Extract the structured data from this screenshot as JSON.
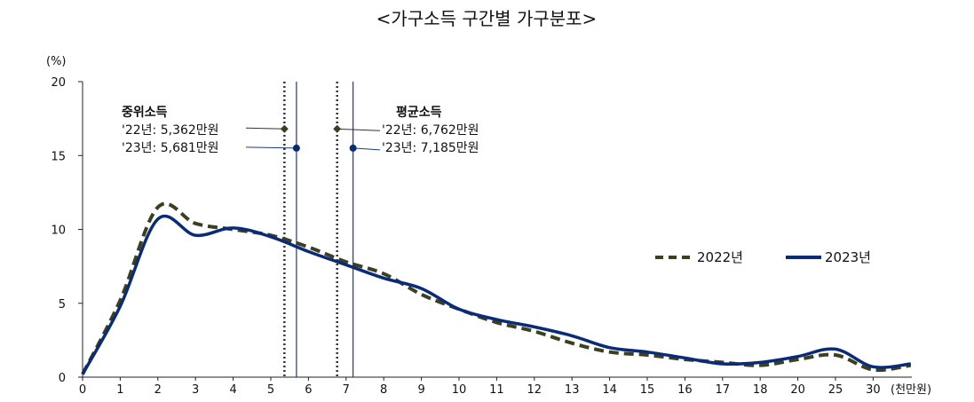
{
  "chart_data": {
    "type": "line",
    "title": "<가구소득 구간별 가구분포>",
    "y_unit": "(%)",
    "x_unit": "(천만원)",
    "ylim": [
      0,
      20
    ],
    "y_ticks": [
      "0",
      "5",
      "10",
      "15",
      "20"
    ],
    "x_ticks": [
      "0",
      "1",
      "2",
      "3",
      "4",
      "5",
      "6",
      "7",
      "8",
      "9",
      "10",
      "11",
      "12",
      "13",
      "14",
      "15",
      "16",
      "17",
      "18",
      "20",
      "25",
      "30"
    ],
    "grid": false,
    "legend_position": "right",
    "series": [
      {
        "name": "2022년",
        "color": "#3a4020",
        "style": "dashed",
        "values": [
          0.2,
          5.2,
          11.5,
          10.4,
          10.0,
          9.6,
          8.8,
          7.8,
          7.0,
          5.6,
          4.6,
          3.7,
          3.1,
          2.3,
          1.7,
          1.5,
          1.2,
          1.0,
          0.8,
          1.2,
          1.5,
          0.5,
          0.8
        ]
      },
      {
        "name": "2023년",
        "color": "#0a2a7a",
        "style": "solid",
        "values": [
          0.2,
          4.8,
          10.7,
          9.6,
          10.1,
          9.5,
          8.5,
          7.6,
          6.7,
          6.0,
          4.6,
          3.9,
          3.4,
          2.8,
          2.0,
          1.7,
          1.3,
          0.9,
          1.0,
          1.4,
          1.9,
          0.7,
          0.9
        ]
      }
    ],
    "annotations": {
      "median": {
        "heading": "중위소득",
        "line_2022": "'22년: 5,362만원",
        "line_2023": "'23년: 5,681만원",
        "value_2022": 5.362,
        "value_2023": 5.681,
        "marker_y_2022": 16.8,
        "marker_y_2023": 15.5
      },
      "mean": {
        "heading": "평균소득",
        "line_2022": "'22년: 6,762만원",
        "line_2023": "'23년: 7,185만원",
        "value_2022": 6.762,
        "value_2023": 7.185,
        "marker_y_2022": 16.8,
        "marker_y_2023": 15.5
      }
    }
  }
}
